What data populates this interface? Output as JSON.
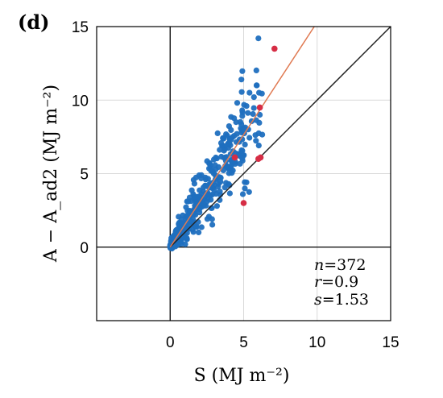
{
  "chart_data": {
    "type": "scatter",
    "panel_label": "(d)",
    "xlabel": "S (MJ m⁻²)",
    "ylabel": "A − A_ad2 (MJ m⁻²)",
    "xlim": [
      -5,
      15
    ],
    "ylim": [
      -5,
      15
    ],
    "xticks": [
      "0",
      "5",
      "10",
      "15"
    ],
    "yticks": [
      "0",
      "5",
      "10",
      "15"
    ],
    "grid": true,
    "annotation": {
      "n_label": "n",
      "n_value": "=372",
      "r_label": "r",
      "r_value": "=0.9",
      "s_label": "s",
      "s_value": "=1.53"
    },
    "colors": {
      "main_points": "#1f6fbf",
      "highlight_points": "#d62d45",
      "one_to_one_line": "#222222",
      "fit_line": "#e07a52",
      "grid": "#d9d9d9"
    },
    "lines": {
      "one_to_one": {
        "slope": 1.0,
        "intercept": 0
      },
      "fit": {
        "slope": 1.53,
        "intercept": 0
      }
    },
    "highlight_points": [
      [
        5.0,
        3.0
      ],
      [
        6.0,
        6.0
      ],
      [
        6.15,
        6.1
      ],
      [
        6.1,
        9.5
      ],
      [
        7.1,
        13.5
      ],
      [
        4.4,
        6.1
      ]
    ],
    "series_summary": {
      "count": 372
    }
  }
}
